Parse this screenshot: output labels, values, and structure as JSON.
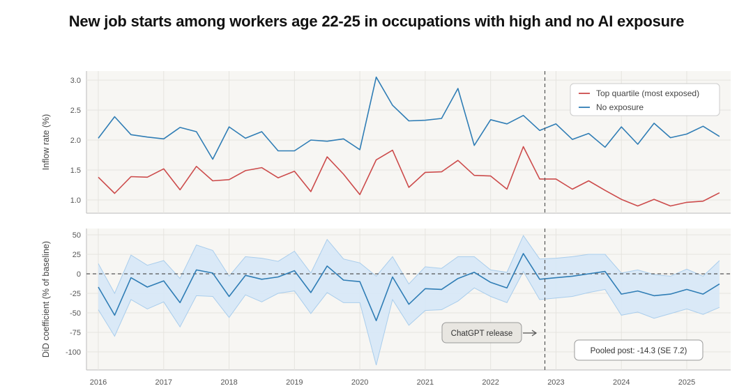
{
  "title": "New job starts among workers age 22-25 in occupations with high and no AI exposure",
  "colors": {
    "top_quartile": "#cc4b4b",
    "no_exposure": "#2f7db5",
    "did_line": "#2f7db5",
    "ci_fill": "#d6e8f7",
    "ci_edge": "#a9cdec",
    "panel_bg": "#f7f6f3",
    "grid": "#e6e4df",
    "release_line": "#555555"
  },
  "chart_data": [
    {
      "type": "line",
      "title": "",
      "xlabel": "",
      "ylabel": "Inflow rate (%)",
      "ylim": [
        0.85,
        3.15
      ],
      "yticks": [
        "1.0",
        "1.5",
        "2.0",
        "2.5",
        "3.0"
      ],
      "x_ticks": [
        "2016",
        "2017",
        "2018",
        "2019",
        "2020",
        "2021",
        "2022",
        "2023",
        "2024",
        "2025"
      ],
      "x_range": [
        2016.0,
        2025.75
      ],
      "grid": true,
      "legend_position": "top-right",
      "x": [
        2016.0,
        2016.25,
        2016.5,
        2016.75,
        2017.0,
        2017.25,
        2017.5,
        2017.75,
        2018.0,
        2018.25,
        2018.5,
        2018.75,
        2019.0,
        2019.25,
        2019.5,
        2019.75,
        2020.0,
        2020.25,
        2020.5,
        2020.75,
        2021.0,
        2021.25,
        2021.5,
        2021.75,
        2022.0,
        2022.25,
        2022.5,
        2022.75,
        2023.0,
        2023.25,
        2023.5,
        2023.75,
        2024.0,
        2024.25,
        2024.5,
        2024.75,
        2025.0,
        2025.25,
        2025.5
      ],
      "series": [
        {
          "name": "Top quartile (most exposed)",
          "values": [
            1.38,
            1.11,
            1.39,
            1.38,
            1.52,
            1.17,
            1.56,
            1.32,
            1.34,
            1.49,
            1.54,
            1.37,
            1.48,
            1.14,
            1.72,
            1.43,
            1.09,
            1.67,
            1.83,
            1.21,
            1.46,
            1.47,
            1.66,
            1.41,
            1.4,
            1.18,
            1.89,
            1.35,
            1.35,
            1.18,
            1.32,
            1.16,
            1.01,
            0.9,
            1.01,
            0.9,
            0.96,
            0.98,
            1.12
          ]
        },
        {
          "name": "No exposure",
          "values": [
            2.03,
            2.39,
            2.09,
            2.05,
            2.02,
            2.21,
            2.14,
            1.68,
            2.22,
            2.03,
            2.14,
            1.82,
            1.82,
            2.0,
            1.98,
            2.02,
            1.84,
            3.05,
            2.58,
            2.32,
            2.33,
            2.36,
            2.86,
            1.91,
            2.34,
            2.27,
            2.41,
            2.16,
            2.27,
            2.01,
            2.11,
            1.88,
            2.22,
            1.93,
            2.28,
            2.04,
            2.1,
            2.23,
            2.06
          ]
        }
      ],
      "annotation": "",
      "legend": [
        "Top quartile (most exposed)",
        "No exposure"
      ]
    },
    {
      "type": "line",
      "title": "",
      "xlabel": "",
      "ylabel": "DiD coefficient (% of baseline)",
      "ylim": [
        -110,
        55
      ],
      "yticks": [
        "50",
        "25",
        "0",
        "-25",
        "-50",
        "-75",
        "-100"
      ],
      "x_ticks": [
        "2016",
        "2017",
        "2018",
        "2019",
        "2020",
        "2021",
        "2022",
        "2023",
        "2024",
        "2025"
      ],
      "x_range": [
        2016.0,
        2025.75
      ],
      "grid": true,
      "x": [
        2016.0,
        2016.25,
        2016.5,
        2016.75,
        2017.0,
        2017.25,
        2017.5,
        2017.75,
        2018.0,
        2018.25,
        2018.5,
        2018.75,
        2019.0,
        2019.25,
        2019.5,
        2019.75,
        2020.0,
        2020.25,
        2020.5,
        2020.75,
        2021.0,
        2021.25,
        2021.5,
        2021.75,
        2022.0,
        2022.25,
        2022.5,
        2022.75,
        2023.0,
        2023.25,
        2023.5,
        2023.75,
        2024.0,
        2024.25,
        2024.5,
        2024.75,
        2025.0,
        2025.25,
        2025.5
      ],
      "series": [
        {
          "name": "DiD coefficient",
          "values": [
            -17,
            -53,
            -5,
            -17,
            -9,
            -37,
            5,
            1,
            -29,
            -2,
            -7,
            -4,
            4,
            -24,
            10,
            -8,
            -10,
            -60,
            -4,
            -39,
            -19,
            -20,
            -6,
            2,
            -11,
            -18,
            26,
            -7,
            -5,
            -3,
            0,
            3,
            -26,
            -22,
            -28,
            -26,
            -20,
            -26,
            -13
          ]
        }
      ],
      "ci_upper": [
        13,
        -25,
        24,
        11,
        17,
        -6,
        37,
        30,
        -3,
        22,
        20,
        16,
        29,
        1,
        44,
        19,
        14,
        -3,
        22,
        -13,
        9,
        7,
        22,
        22,
        5,
        2,
        49,
        19,
        20,
        22,
        25,
        25,
        1,
        5,
        -1,
        -3,
        6,
        -3,
        17
      ],
      "ci_lower": [
        -46,
        -80,
        -33,
        -45,
        -36,
        -68,
        -28,
        -29,
        -56,
        -27,
        -36,
        -25,
        -22,
        -51,
        -24,
        -37,
        -37,
        -117,
        -33,
        -66,
        -47,
        -46,
        -35,
        -18,
        -29,
        -37,
        3,
        -33,
        -31,
        -29,
        -24,
        -20,
        -53,
        -49,
        -57,
        -51,
        -45,
        -52,
        -43
      ],
      "reference_line": 0,
      "vertical_line_x": 2022.83,
      "annotations": [
        "ChatGPT release",
        "Pooled post: -14.3 (SE 7.2)"
      ]
    }
  ]
}
